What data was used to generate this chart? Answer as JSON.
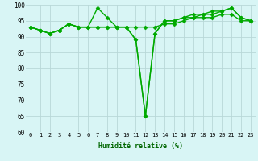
{
  "xlabel": "Humidité relative (%)",
  "ylabel": "",
  "background_color": "#d8f5f5",
  "grid_color": "#b8d8d8",
  "line_color": "#00aa00",
  "marker": "D",
  "marker_size": 2.5,
  "line_width": 1.0,
  "xlim": [
    -0.5,
    23.5
  ],
  "ylim": [
    60,
    100
  ],
  "yticks": [
    60,
    65,
    70,
    75,
    80,
    85,
    90,
    95,
    100
  ],
  "xticks": [
    0,
    1,
    2,
    3,
    4,
    5,
    6,
    7,
    8,
    9,
    10,
    11,
    12,
    13,
    14,
    15,
    16,
    17,
    18,
    19,
    20,
    21,
    22,
    23
  ],
  "series": [
    [
      93,
      92,
      91,
      92,
      94,
      93,
      93,
      99,
      96,
      93,
      93,
      89,
      65,
      91,
      95,
      95,
      96,
      97,
      97,
      98,
      98,
      99,
      96,
      95
    ],
    [
      93,
      92,
      91,
      92,
      94,
      93,
      93,
      93,
      93,
      93,
      93,
      89,
      65,
      91,
      95,
      95,
      96,
      96,
      97,
      97,
      98,
      99,
      96,
      95
    ],
    [
      93,
      92,
      91,
      92,
      94,
      93,
      93,
      93,
      93,
      93,
      93,
      93,
      93,
      93,
      94,
      94,
      95,
      96,
      96,
      96,
      97,
      97,
      95,
      95
    ]
  ]
}
